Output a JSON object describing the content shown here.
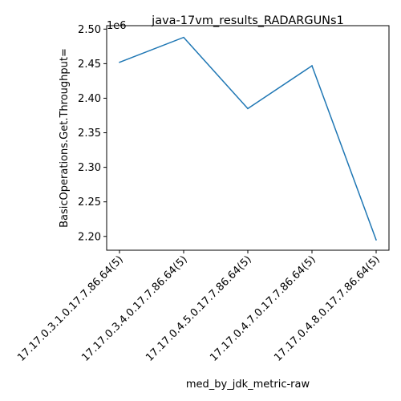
{
  "chart_data": {
    "type": "line",
    "title": "java-17vm_results_RADARGUNs1",
    "xlabel": "med_by_jdk_metric-raw",
    "ylabel": "BasicOperations.Get.Throughput=",
    "y_offset_label": "1e6",
    "categories": [
      "17.17.0.3.1.0.17.7.86.64(5)",
      "17.17.0.3.4.0.17.7.86.64(5)",
      "17.17.0.4.5.0.17.7.86.64(5)",
      "17.17.0.4.7.0.17.7.86.64(5)",
      "17.17.0.4.8.0.17.7.86.64(5)"
    ],
    "series": [
      {
        "values": [
          2452000,
          2488000,
          2385000,
          2447000,
          2195000
        ],
        "color": "#1f77b4"
      }
    ],
    "ylim": [
      2180000,
      2505000
    ],
    "y_ticks": [
      2200000,
      2250000,
      2300000,
      2350000,
      2400000,
      2450000,
      2500000
    ],
    "y_tick_labels": [
      "2.20",
      "2.25",
      "2.30",
      "2.35",
      "2.40",
      "2.45",
      "2.50"
    ],
    "grid": false,
    "legend": "none"
  }
}
